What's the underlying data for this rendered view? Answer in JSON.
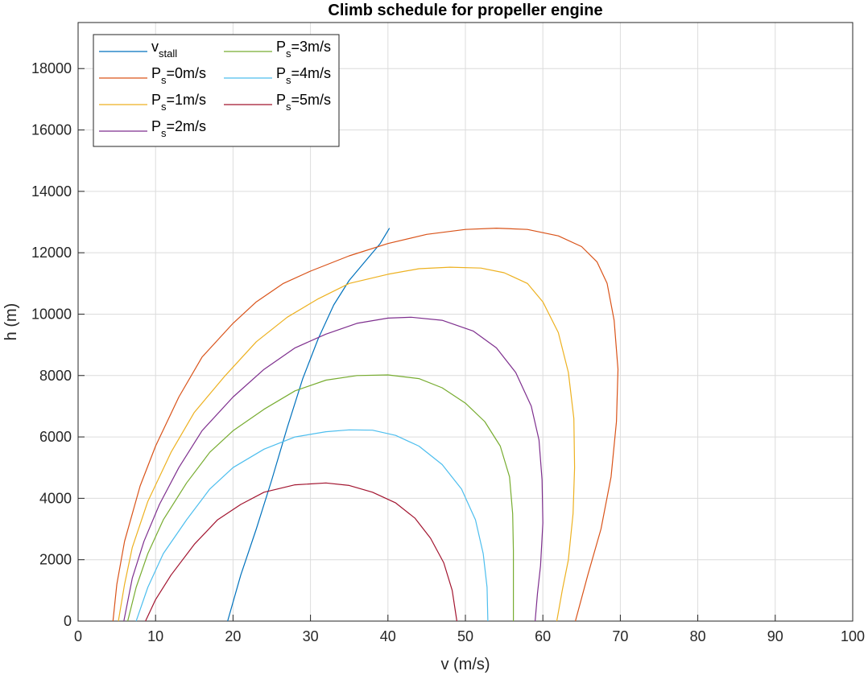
{
  "chart_data": {
    "type": "line",
    "title": "Climb schedule for propeller engine",
    "xlabel": "v (m/s)",
    "ylabel": "h (m)",
    "xlim": [
      0,
      100
    ],
    "ylim": [
      0,
      19500
    ],
    "xticks": [
      0,
      10,
      20,
      30,
      40,
      50,
      60,
      70,
      80,
      90,
      100
    ],
    "yticks": [
      0,
      2000,
      4000,
      6000,
      8000,
      10000,
      12000,
      14000,
      16000,
      18000
    ],
    "grid": true,
    "legend_position": "top-left",
    "series": [
      {
        "name": "v",
        "name_sub": "stall",
        "color": "#0072BD",
        "points": [
          [
            19.3,
            0
          ],
          [
            21,
            1500
          ],
          [
            23,
            3000
          ],
          [
            25,
            4600
          ],
          [
            27,
            6300
          ],
          [
            29,
            7900
          ],
          [
            31,
            9200
          ],
          [
            33,
            10300
          ],
          [
            35,
            11100
          ],
          [
            37,
            11700
          ],
          [
            39,
            12300
          ],
          [
            40.2,
            12800
          ]
        ]
      },
      {
        "name": "P",
        "name_sub": "s",
        "name_suffix": "=0m/s",
        "color": "#D95319",
        "points": [
          [
            4.5,
            0
          ],
          [
            5,
            1200
          ],
          [
            6,
            2600
          ],
          [
            8,
            4400
          ],
          [
            10,
            5700
          ],
          [
            13,
            7300
          ],
          [
            16,
            8600
          ],
          [
            20,
            9700
          ],
          [
            23,
            10400
          ],
          [
            26.5,
            11000
          ],
          [
            30,
            11400
          ],
          [
            35,
            11900
          ],
          [
            40,
            12300
          ],
          [
            45,
            12600
          ],
          [
            50,
            12760
          ],
          [
            54,
            12800
          ],
          [
            58,
            12760
          ],
          [
            62,
            12550
          ],
          [
            65,
            12200
          ],
          [
            67,
            11700
          ],
          [
            68.3,
            11000
          ],
          [
            69.2,
            9800
          ],
          [
            69.7,
            8200
          ],
          [
            69.5,
            6500
          ],
          [
            68.8,
            4700
          ],
          [
            67.5,
            3000
          ],
          [
            65.8,
            1500
          ],
          [
            64.2,
            0
          ]
        ]
      },
      {
        "name": "P",
        "name_sub": "s",
        "name_suffix": "=1m/s",
        "color": "#EDB120",
        "points": [
          [
            5.2,
            0
          ],
          [
            6,
            1200
          ],
          [
            7,
            2400
          ],
          [
            9,
            3900
          ],
          [
            12,
            5500
          ],
          [
            15,
            6800
          ],
          [
            19,
            8000
          ],
          [
            23,
            9100
          ],
          [
            27,
            9900
          ],
          [
            31,
            10500
          ],
          [
            35,
            11000
          ],
          [
            40,
            11300
          ],
          [
            44,
            11480
          ],
          [
            48,
            11530
          ],
          [
            52,
            11500
          ],
          [
            55,
            11350
          ],
          [
            58,
            11000
          ],
          [
            60,
            10400
          ],
          [
            62,
            9400
          ],
          [
            63.3,
            8100
          ],
          [
            64,
            6600
          ],
          [
            64.1,
            5000
          ],
          [
            63.9,
            3500
          ],
          [
            63.3,
            2000
          ],
          [
            62.5,
            1000
          ],
          [
            61.8,
            0
          ]
        ]
      },
      {
        "name": "P",
        "name_sub": "s",
        "name_suffix": "=2m/s",
        "color": "#7E2F8E",
        "points": [
          [
            5.9,
            0
          ],
          [
            7,
            1400
          ],
          [
            8.5,
            2600
          ],
          [
            10.5,
            3800
          ],
          [
            13,
            5000
          ],
          [
            16,
            6200
          ],
          [
            20,
            7300
          ],
          [
            24,
            8200
          ],
          [
            28,
            8900
          ],
          [
            32,
            9350
          ],
          [
            36,
            9700
          ],
          [
            40,
            9870
          ],
          [
            43,
            9900
          ],
          [
            47,
            9800
          ],
          [
            51,
            9450
          ],
          [
            54,
            8900
          ],
          [
            56.5,
            8100
          ],
          [
            58.5,
            7000
          ],
          [
            59.5,
            5900
          ],
          [
            59.9,
            4600
          ],
          [
            60,
            3200
          ],
          [
            59.7,
            1800
          ],
          [
            59.3,
            900
          ],
          [
            59,
            0
          ]
        ]
      },
      {
        "name": "P",
        "name_sub": "s",
        "name_suffix": "=3m/s",
        "color": "#77AC30",
        "points": [
          [
            6.4,
            0
          ],
          [
            7.5,
            1100
          ],
          [
            9,
            2200
          ],
          [
            11,
            3300
          ],
          [
            14,
            4500
          ],
          [
            17,
            5500
          ],
          [
            20,
            6200
          ],
          [
            24,
            6900
          ],
          [
            28,
            7500
          ],
          [
            32,
            7850
          ],
          [
            36,
            8000
          ],
          [
            40,
            8020
          ],
          [
            44,
            7900
          ],
          [
            47,
            7600
          ],
          [
            50,
            7100
          ],
          [
            52.5,
            6500
          ],
          [
            54.5,
            5700
          ],
          [
            55.7,
            4700
          ],
          [
            56.1,
            3500
          ],
          [
            56.2,
            2300
          ],
          [
            56.2,
            1000
          ],
          [
            56.2,
            0
          ]
        ]
      },
      {
        "name": "P",
        "name_sub": "s",
        "name_suffix": "=4m/s",
        "color": "#4DBEEE",
        "points": [
          [
            7.5,
            0
          ],
          [
            9,
            1100
          ],
          [
            11,
            2200
          ],
          [
            14,
            3300
          ],
          [
            17,
            4300
          ],
          [
            20,
            5000
          ],
          [
            24,
            5600
          ],
          [
            28,
            6000
          ],
          [
            32,
            6170
          ],
          [
            35,
            6230
          ],
          [
            38,
            6220
          ],
          [
            41,
            6050
          ],
          [
            44,
            5700
          ],
          [
            47,
            5100
          ],
          [
            49.5,
            4300
          ],
          [
            51.3,
            3300
          ],
          [
            52.3,
            2200
          ],
          [
            52.8,
            1100
          ],
          [
            52.9,
            0
          ]
        ]
      },
      {
        "name": "P",
        "name_sub": "s",
        "name_suffix": "=5m/s",
        "color": "#A2142F",
        "points": [
          [
            8.7,
            0
          ],
          [
            10,
            700
          ],
          [
            12,
            1500
          ],
          [
            15,
            2500
          ],
          [
            18,
            3300
          ],
          [
            21,
            3800
          ],
          [
            24,
            4200
          ],
          [
            28,
            4440
          ],
          [
            32,
            4500
          ],
          [
            35,
            4420
          ],
          [
            38,
            4200
          ],
          [
            41,
            3850
          ],
          [
            43.5,
            3350
          ],
          [
            45.5,
            2700
          ],
          [
            47.2,
            1900
          ],
          [
            48.3,
            1000
          ],
          [
            48.9,
            0
          ]
        ]
      }
    ]
  }
}
